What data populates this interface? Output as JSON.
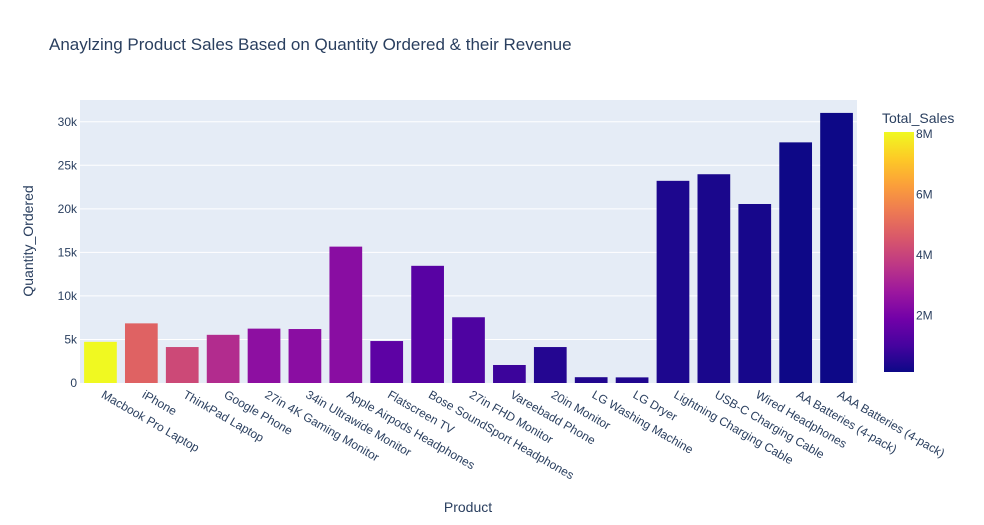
{
  "chart_data": {
    "type": "bar",
    "title": "Anaylzing Product Sales Based on Quantity Ordered & their Revenue",
    "xlabel": "Product",
    "ylabel": "Quantity_Ordered",
    "ylim": [
      0,
      32500
    ],
    "yticks": [
      0,
      5000,
      10000,
      15000,
      20000,
      25000,
      30000
    ],
    "ytick_labels": [
      "0",
      "5k",
      "10k",
      "15k",
      "20k",
      "25k",
      "30k"
    ],
    "grid": true,
    "categories": [
      "Macbook Pro Laptop",
      "iPhone",
      "ThinkPad Laptop",
      "Google Phone",
      "27in 4K Gaming Monitor",
      "34in Ultrawide Monitor",
      "Apple Airpods Headphones",
      "Flatscreen TV",
      "Bose SoundSport Headphones",
      "27in FHD Monitor",
      "Vareebadd Phone",
      "20in Monitor",
      "LG Washing Machine",
      "LG Dryer",
      "Lightning Charging Cable",
      "USB-C Charging Cable",
      "Wired Headphones",
      "AA Batteries (4-pack)",
      "AAA Batteries (4-pack)"
    ],
    "values": [
      4728,
      6849,
      4130,
      5532,
      6244,
      6199,
      15661,
      4819,
      13457,
      7550,
      2068,
      4129,
      666,
      646,
      23217,
      23975,
      20557,
      27635,
      31017
    ],
    "color_values": [
      8037600,
      4794300,
      4129959,
      3319200,
      2435098,
      2355558,
      2349150,
      1445700,
      1345565,
      1132425,
      827400,
      454148,
      399600,
      387600,
      347094,
      286501,
      246478,
      106118,
      92740
    ],
    "colorbar": {
      "title": "Total_Sales",
      "cmin": 92740,
      "cmax": 8037600,
      "ticks": [
        2000000,
        4000000,
        6000000,
        8000000
      ],
      "tick_labels": [
        "2M",
        "4M",
        "6M",
        "8M"
      ],
      "colorscale": [
        "#0d0887",
        "#46039f",
        "#7201a8",
        "#9c179e",
        "#bd3786",
        "#d8576b",
        "#ed7953",
        "#fb9f3a",
        "#fdca26",
        "#f0f921"
      ]
    },
    "plot_bg": "#e5ecf6"
  }
}
